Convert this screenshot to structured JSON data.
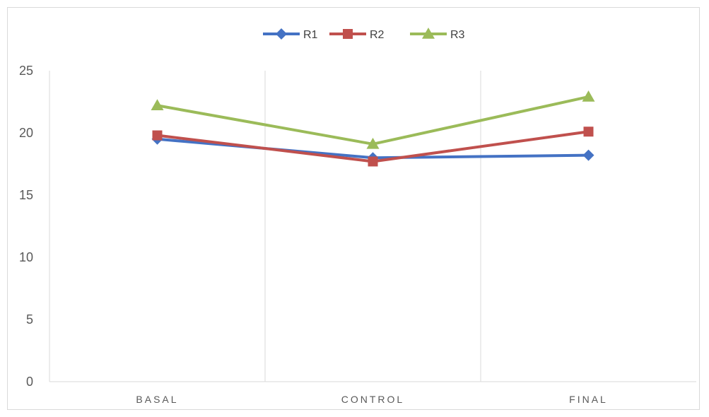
{
  "chart_data": {
    "type": "line",
    "title": "",
    "xlabel": "",
    "ylabel": "",
    "categories": [
      "BASAL",
      "CONTROL",
      "FINAL"
    ],
    "ylim": [
      0,
      25
    ],
    "yticks": [
      0,
      5,
      10,
      15,
      20,
      25
    ],
    "grid": "vertical",
    "legend_position": "top",
    "series": [
      {
        "name": "R1",
        "color": "#4472C4",
        "marker": "diamond",
        "values": [
          19.5,
          18.0,
          18.2
        ]
      },
      {
        "name": "R2",
        "color": "#C0504D",
        "marker": "square",
        "values": [
          19.8,
          17.7,
          20.1
        ]
      },
      {
        "name": "R3",
        "color": "#9BBB59",
        "marker": "triangle",
        "values": [
          22.2,
          19.1,
          22.9
        ]
      }
    ]
  }
}
